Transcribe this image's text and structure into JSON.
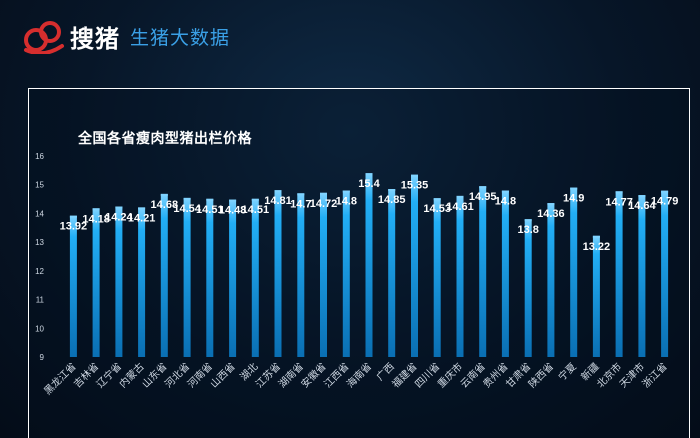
{
  "header": {
    "brand": "搜猪",
    "subtitle": "生猪大数据",
    "logo_icon": "pig-logo-icon"
  },
  "colors": {
    "bar": "#1ea8f0",
    "bar_glow": "#7fd3ff",
    "label": "#ffffff",
    "tick": "#cfd8e3",
    "accent_logo": "#d62e2e"
  },
  "chart_data": {
    "type": "bar",
    "title": "全国各省瘦肉型猪出栏价格",
    "xlabel": "",
    "ylabel": "",
    "ylim": [
      9,
      16
    ],
    "yticks": [
      9,
      10,
      11,
      12,
      13,
      14,
      15,
      16
    ],
    "grid": false,
    "categories": [
      "黑龙江省",
      "吉林省",
      "辽宁省",
      "内蒙古",
      "山东省",
      "河北省",
      "河南省",
      "山西省",
      "湖北",
      "江苏省",
      "湖南省",
      "安徽省",
      "江西省",
      "海南省",
      "广西",
      "福建省",
      "四川省",
      "重庆市",
      "云南省",
      "贵州省",
      "甘肃省",
      "陕西省",
      "宁夏",
      "新疆",
      "北京市",
      "天津市",
      "浙江省"
    ],
    "values": [
      13.92,
      14.18,
      14.24,
      14.21,
      14.68,
      14.54,
      14.51,
      14.48,
      14.51,
      14.81,
      14.7,
      14.72,
      14.8,
      15.4,
      14.85,
      15.35,
      14.53,
      14.61,
      14.95,
      14.8,
      13.8,
      14.36,
      14.9,
      13.22,
      14.77,
      14.64,
      14.79
    ],
    "value_labels": [
      "13.92",
      "14.18",
      "14.24",
      "14.21",
      "14.68",
      "14.54",
      "14.51",
      "14.48",
      "14.51",
      "14.81",
      "14.7",
      "14.72",
      "14.8",
      "15.4",
      "14.85",
      "15.35",
      "14.53",
      "14.61",
      "14.95",
      "14.8",
      "13.8",
      "14.36",
      "14.9",
      "13.22",
      "14.77",
      "14.64",
      "14.79"
    ]
  }
}
